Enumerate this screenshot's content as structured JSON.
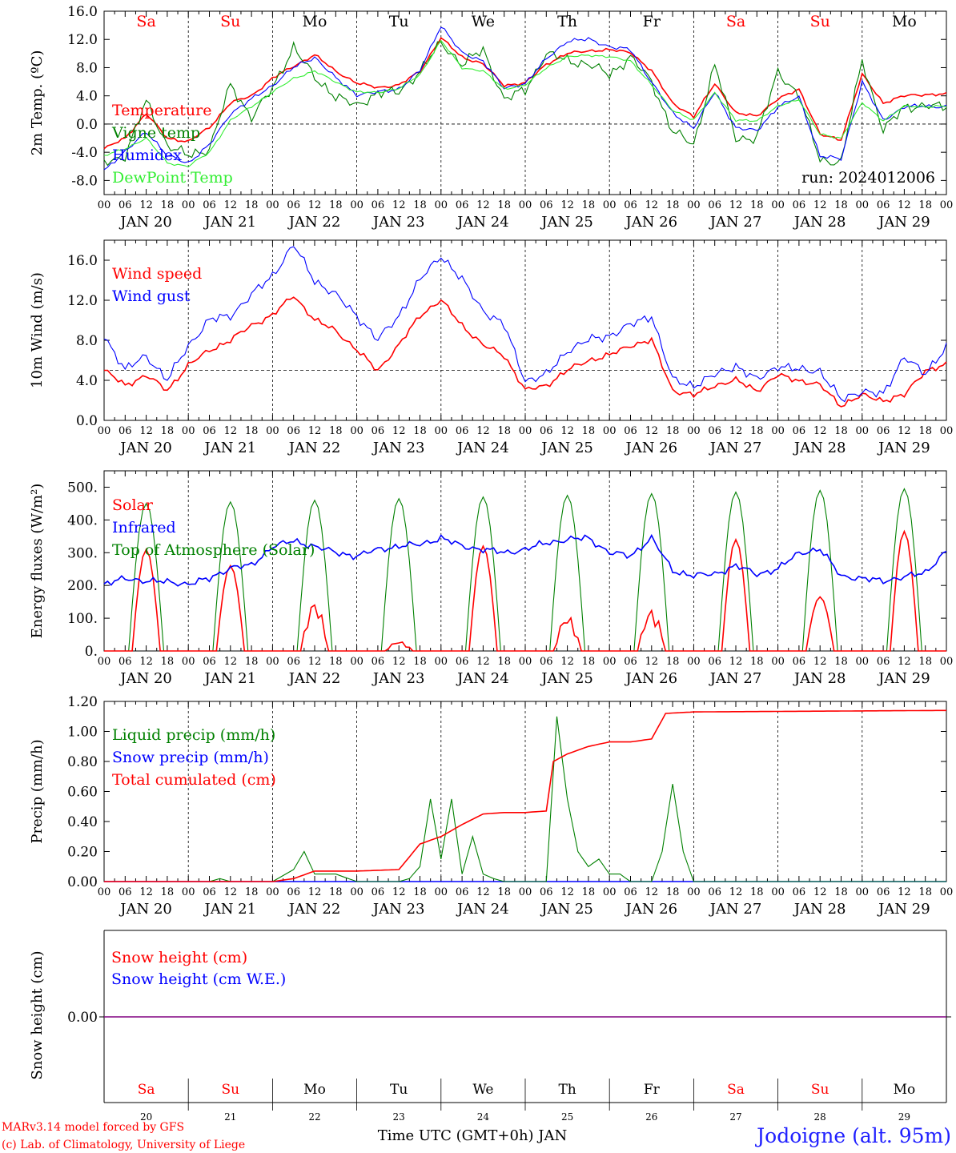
{
  "days": [
    {
      "abbr": "Sa",
      "weekend": true,
      "date": "JAN 20",
      "num": "20"
    },
    {
      "abbr": "Su",
      "weekend": true,
      "date": "JAN 21",
      "num": "21"
    },
    {
      "abbr": "Mo",
      "weekend": false,
      "date": "JAN 22",
      "num": "22"
    },
    {
      "abbr": "Tu",
      "weekend": false,
      "date": "JAN 23",
      "num": "23"
    },
    {
      "abbr": "We",
      "weekend": false,
      "date": "JAN 24",
      "num": "24"
    },
    {
      "abbr": "Th",
      "weekend": false,
      "date": "JAN 25",
      "num": "25"
    },
    {
      "abbr": "Fr",
      "weekend": false,
      "date": "JAN 26",
      "num": "26"
    },
    {
      "abbr": "Sa",
      "weekend": true,
      "date": "JAN 27",
      "num": "27"
    },
    {
      "abbr": "Su",
      "weekend": true,
      "date": "JAN 28",
      "num": "28"
    },
    {
      "abbr": "Mo",
      "weekend": false,
      "date": "JAN 29",
      "num": "29"
    }
  ],
  "hour_labels": [
    "00",
    "06",
    "12",
    "18"
  ],
  "end_hour_label": "00",
  "colors": {
    "red": "#ff0000",
    "dark_green": "#008000",
    "blue": "#0000ff",
    "light_green": "#33ee33",
    "axis": "#000000",
    "snow_line": "#800080",
    "weekend_label": "#ff0000"
  },
  "footer": {
    "model": "MARv3.14 model forced by GFS",
    "lab": "(c) Lab. of Climatology, University of Liege",
    "xlabel": "Time UTC (GMT+0h) JAN",
    "station": "Jodoigne (alt. 95m)"
  },
  "chart_data": [
    {
      "type": "line",
      "ylabel": "2m Temp. (ºC)",
      "ylim": [
        -10,
        16
      ],
      "yticks": [
        "-8.0",
        "-4.0",
        "0.0",
        "4.0",
        "8.0",
        "12.0",
        "16.0"
      ],
      "yticks_values": [
        -8,
        -4,
        0,
        4,
        8,
        12,
        16
      ],
      "ref_line": 0,
      "annotation": "run: 2024012006",
      "x_hours_from_jan20_00": [
        0,
        6,
        12,
        18,
        24,
        30,
        36,
        42,
        48,
        54,
        60,
        66,
        72,
        78,
        84,
        90,
        96,
        102,
        108,
        114,
        120,
        126,
        132,
        138,
        144,
        150,
        156,
        162,
        168,
        174,
        180,
        186,
        192,
        198,
        204,
        210,
        216,
        222,
        228,
        234,
        240
      ],
      "series": [
        {
          "name": "Temperature",
          "color": "#ff0000",
          "values": [
            -3.5,
            -2.0,
            1.5,
            -2.0,
            -2.5,
            -0.5,
            3.0,
            4.0,
            6.5,
            8.2,
            9.8,
            7.5,
            5.8,
            5.2,
            5.5,
            7.5,
            12.2,
            9.5,
            8.5,
            5.5,
            5.8,
            8.5,
            10.0,
            10.4,
            10.5,
            10.2,
            7.5,
            3.0,
            1.0,
            5.8,
            1.5,
            1.2,
            3.5,
            5.0,
            -1.5,
            -2.2,
            7.0,
            3.0,
            4.0,
            4.2,
            4.2
          ]
        },
        {
          "name": "Vigne temp",
          "color": "#008000",
          "values": [
            -5.5,
            -4.5,
            3.2,
            -3.0,
            -4.5,
            -3.5,
            5.5,
            1.0,
            5.0,
            11.0,
            6.5,
            4.0,
            2.5,
            4.5,
            4.5,
            7.5,
            11.5,
            8.5,
            10.5,
            3.5,
            4.8,
            10.0,
            9.0,
            8.5,
            7.0,
            9.5,
            6.0,
            -1.0,
            -3.0,
            8.5,
            -2.0,
            -2.0,
            7.5,
            4.0,
            -5.0,
            -5.5,
            9.2,
            -1.0,
            2.5,
            2.5,
            2.5
          ]
        },
        {
          "name": "Humidex",
          "color": "#0000ff",
          "values": [
            -6.5,
            -4.0,
            -1.0,
            -4.5,
            -5.5,
            -3.0,
            1.5,
            3.5,
            5.5,
            8.0,
            9.5,
            6.5,
            4.2,
            4.5,
            5.0,
            7.5,
            14.0,
            10.0,
            9.0,
            5.0,
            5.8,
            9.2,
            11.8,
            12.0,
            11.0,
            10.5,
            6.0,
            1.5,
            -0.5,
            4.5,
            -0.5,
            -1.0,
            2.5,
            3.8,
            -4.5,
            -5.0,
            6.0,
            0.5,
            2.5,
            2.5,
            2.5
          ]
        },
        {
          "name": "DewPoint Temp",
          "color": "#33ee33",
          "values": [
            -4.5,
            -3.5,
            -2.0,
            -5.5,
            -6.0,
            -4.0,
            0.5,
            2.5,
            4.5,
            6.5,
            7.5,
            6.0,
            4.5,
            4.5,
            5.0,
            7.0,
            11.8,
            8.0,
            7.5,
            5.0,
            5.5,
            8.0,
            9.5,
            9.8,
            9.5,
            9.0,
            5.5,
            2.0,
            0.5,
            4.5,
            0.5,
            0.5,
            2.5,
            3.5,
            -1.5,
            -2.0,
            3.0,
            0.5,
            2.5,
            2.5,
            2.5
          ]
        }
      ]
    },
    {
      "type": "line",
      "ylabel": "10m Wind (m/s)",
      "ylim": [
        0,
        18
      ],
      "yticks": [
        "0.0",
        "4.0",
        "8.0",
        "12.0",
        "16.0"
      ],
      "yticks_values": [
        0,
        4,
        8,
        12,
        16
      ],
      "ref_line": 5,
      "x_hours_from_jan20_00": [
        0,
        6,
        12,
        18,
        24,
        30,
        36,
        42,
        48,
        54,
        60,
        66,
        72,
        78,
        84,
        90,
        96,
        102,
        108,
        114,
        120,
        126,
        132,
        138,
        144,
        150,
        156,
        162,
        168,
        174,
        180,
        186,
        192,
        198,
        204,
        210,
        216,
        222,
        228,
        234,
        240
      ],
      "series": [
        {
          "name": "Wind speed",
          "color": "#ff0000",
          "values": [
            5.0,
            3.5,
            4.5,
            3.0,
            5.5,
            7.0,
            8.0,
            9.5,
            10.5,
            12.5,
            10.0,
            9.0,
            7.0,
            5.0,
            7.5,
            10.5,
            12.0,
            9.5,
            7.5,
            6.5,
            3.0,
            3.5,
            5.0,
            6.0,
            6.5,
            7.5,
            8.0,
            3.0,
            2.5,
            3.5,
            4.0,
            3.0,
            4.5,
            4.0,
            3.5,
            1.5,
            2.5,
            2.0,
            2.5,
            5.0,
            5.5
          ]
        },
        {
          "name": "Wind gust",
          "color": "#0000ff",
          "values": [
            8.5,
            5.0,
            6.5,
            4.0,
            7.5,
            10.0,
            10.5,
            12.5,
            14.5,
            17.5,
            14.0,
            12.5,
            10.5,
            8.0,
            10.5,
            14.0,
            16.5,
            14.0,
            11.0,
            9.5,
            4.0,
            4.5,
            7.0,
            8.0,
            8.5,
            9.5,
            10.5,
            4.0,
            3.5,
            4.5,
            5.5,
            4.0,
            5.5,
            5.0,
            5.0,
            2.0,
            3.0,
            2.5,
            6.5,
            4.5,
            7.5
          ]
        }
      ]
    },
    {
      "type": "line",
      "ylabel": "Energy fluxes (W/m²)",
      "ylim": [
        0,
        550
      ],
      "yticks": [
        "0.",
        "100.",
        "200.",
        "300.",
        "400.",
        "500."
      ],
      "yticks_values": [
        0,
        100,
        200,
        300,
        400,
        500
      ],
      "solar_peaks": [
        310,
        260,
        155,
        30,
        320,
        110,
        130,
        340,
        165,
        365
      ],
      "toa_peaks": [
        450,
        455,
        460,
        465,
        470,
        475,
        480,
        485,
        490,
        495
      ],
      "infrared": {
        "x_hours_from_jan20_00": [
          0,
          6,
          12,
          18,
          24,
          30,
          36,
          42,
          48,
          54,
          60,
          66,
          72,
          78,
          84,
          90,
          96,
          102,
          108,
          114,
          120,
          126,
          132,
          138,
          144,
          150,
          156,
          162,
          168,
          174,
          180,
          186,
          192,
          198,
          204,
          210,
          216,
          222,
          228,
          234,
          240
        ],
        "values": [
          205,
          220,
          215,
          210,
          205,
          220,
          255,
          260,
          320,
          335,
          320,
          300,
          290,
          310,
          320,
          325,
          345,
          320,
          310,
          300,
          310,
          330,
          340,
          345,
          300,
          290,
          345,
          245,
          230,
          235,
          260,
          235,
          250,
          300,
          310,
          230,
          220,
          215,
          225,
          240,
          305
        ]
      },
      "series": [
        {
          "name": "Solar",
          "color": "#ff0000"
        },
        {
          "name": "Infrared",
          "color": "#0000ff"
        },
        {
          "name": "Top of Atmosphere (Solar)",
          "color": "#008000"
        }
      ]
    },
    {
      "type": "line",
      "ylabel": "Precip (mm/h)",
      "ylim": [
        0,
        1.2
      ],
      "yticks": [
        "0.00",
        "0.20",
        "0.40",
        "0.60",
        "0.80",
        "1.00",
        "1.20"
      ],
      "yticks_values": [
        0,
        0.2,
        0.4,
        0.6,
        0.8,
        1.0,
        1.2
      ],
      "liquid": {
        "x_hours_from_jan20_00": [
          0,
          30,
          33,
          36,
          48,
          54,
          57,
          60,
          66,
          72,
          84,
          87,
          90,
          93,
          96,
          99,
          102,
          105,
          108,
          111,
          114,
          120,
          126,
          129,
          132,
          135,
          138,
          141,
          144,
          147,
          150,
          156,
          159,
          162,
          165,
          168,
          240
        ],
        "values": [
          0,
          0,
          0.02,
          0,
          0,
          0.08,
          0.2,
          0.05,
          0.05,
          0,
          0,
          0.02,
          0.1,
          0.55,
          0.15,
          0.55,
          0.05,
          0.3,
          0.05,
          0.02,
          0,
          0,
          0,
          1.1,
          0.55,
          0.2,
          0.1,
          0.15,
          0.05,
          0.05,
          0,
          0,
          0.2,
          0.65,
          0.2,
          0,
          0
        ]
      },
      "cumulated": {
        "x_hours_from_jan20_00": [
          0,
          48,
          54,
          60,
          72,
          84,
          90,
          96,
          102,
          108,
          114,
          120,
          126,
          128,
          132,
          138,
          144,
          150,
          156,
          160,
          168,
          240
        ],
        "values": [
          0,
          0,
          0.02,
          0.07,
          0.07,
          0.08,
          0.25,
          0.3,
          0.38,
          0.45,
          0.46,
          0.46,
          0.47,
          0.8,
          0.85,
          0.9,
          0.93,
          0.93,
          0.95,
          1.12,
          1.13,
          1.14
        ]
      },
      "series": [
        {
          "name": "Liquid precip (mm/h)",
          "color": "#008000"
        },
        {
          "name": "Snow precip (mm/h)",
          "color": "#0000ff"
        },
        {
          "name": "Total cumulated (cm)",
          "color": "#ff0000"
        }
      ]
    },
    {
      "type": "line",
      "ylabel": "Snow height (cm)",
      "yticks": [
        "0.00"
      ],
      "yticks_values": [
        0
      ],
      "series": [
        {
          "name": "Snow height (cm)",
          "color": "#ff0000",
          "values": [
            0
          ]
        },
        {
          "name": "Snow height (cm W.E.)",
          "color": "#0000ff",
          "values": [
            0
          ]
        }
      ]
    }
  ]
}
